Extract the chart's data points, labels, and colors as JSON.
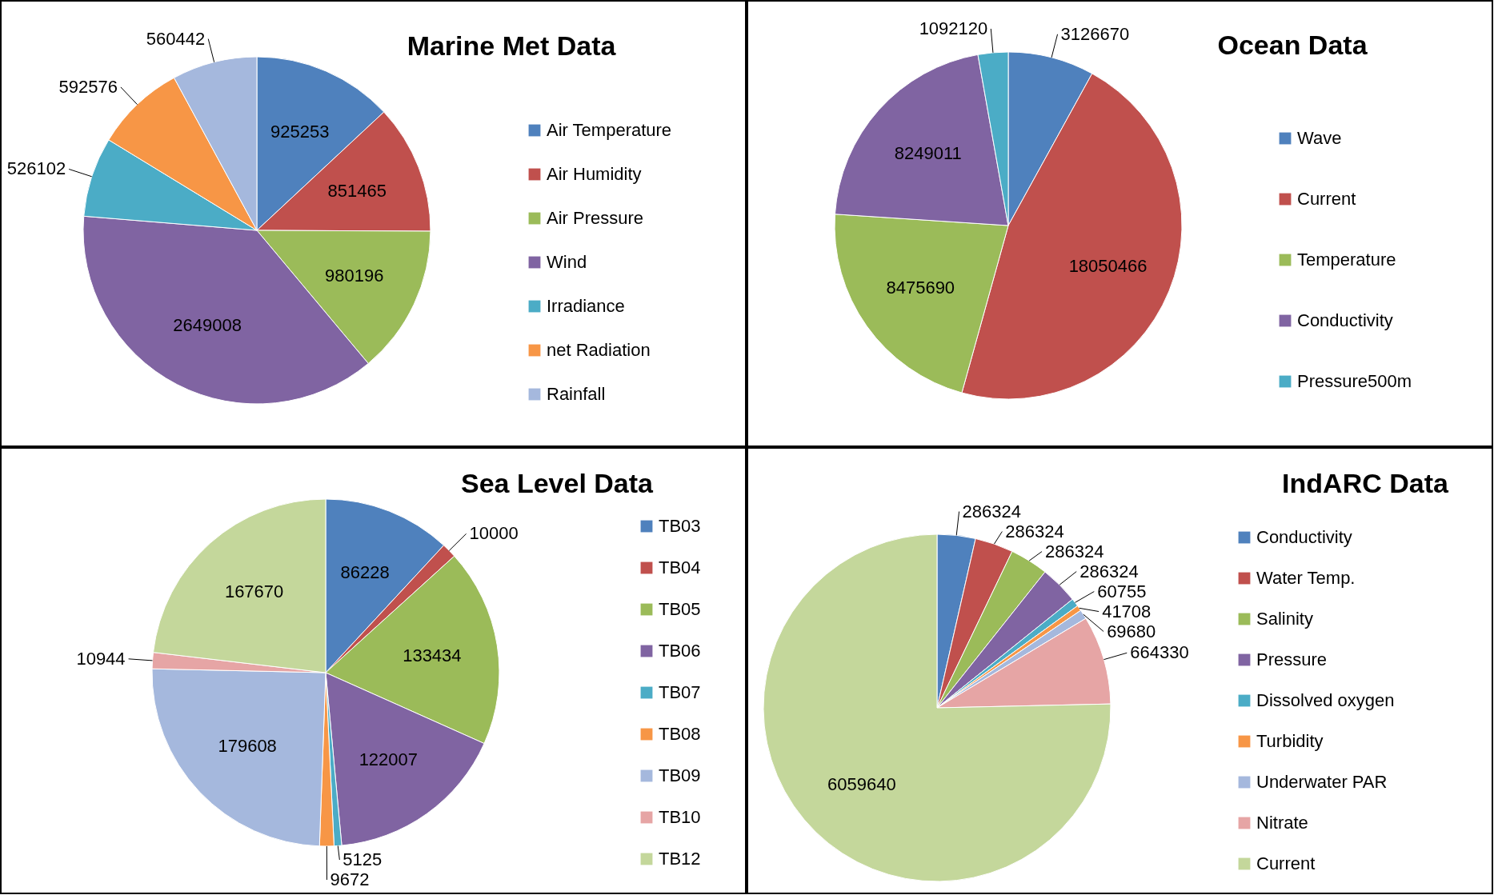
{
  "chart_data": [
    {
      "type": "pie",
      "title": "Marine Met Data",
      "categories": [
        "Air Temperature",
        "Air Humidity",
        "Air Pressure",
        "Wind",
        "Irradiance",
        "net Radiation",
        "Rainfall"
      ],
      "values": [
        925253,
        851465,
        980196,
        2649008,
        526102,
        592576,
        560442
      ],
      "colors": [
        "#4f81bd",
        "#c0504d",
        "#9bbb59",
        "#8064a2",
        "#4bacc6",
        "#f79646",
        "#a5b8dd"
      ],
      "data_labels": true,
      "legend": "right"
    },
    {
      "type": "pie",
      "title": "Ocean Data",
      "categories": [
        "Wave",
        "Current",
        "Temperature",
        "Conductivity",
        "Pressure500m"
      ],
      "values": [
        3126670,
        18050466,
        8475690,
        8249011,
        1092120
      ],
      "colors": [
        "#4f81bd",
        "#c0504d",
        "#9bbb59",
        "#8064a2",
        "#4bacc6"
      ],
      "data_labels": true,
      "legend": "right"
    },
    {
      "type": "pie",
      "title": "Sea Level Data",
      "categories": [
        "TB03",
        "TB04",
        "TB05",
        "TB06",
        "TB07",
        "TB08",
        "TB09",
        "TB10",
        "TB12"
      ],
      "values": [
        86228,
        10000,
        133434,
        122007,
        5125,
        9672,
        179608,
        10944,
        167670
      ],
      "colors": [
        "#4f81bd",
        "#c0504d",
        "#9bbb59",
        "#8064a2",
        "#4bacc6",
        "#f79646",
        "#a5b8dd",
        "#e6a5a5",
        "#c4d79b"
      ],
      "data_labels": true,
      "legend": "right"
    },
    {
      "type": "pie",
      "title": "IndARC Data",
      "categories": [
        "Conductivity",
        "Water Temp.",
        "Salinity",
        "Pressure",
        "Dissolved oxygen",
        "Turbidity",
        "Underwater PAR",
        "Nitrate",
        "Current"
      ],
      "values": [
        286324,
        286324,
        286324,
        286324,
        60755,
        41708,
        69680,
        664330,
        6059640
      ],
      "colors": [
        "#4f81bd",
        "#c0504d",
        "#9bbb59",
        "#8064a2",
        "#4bacc6",
        "#f79646",
        "#a5b8dd",
        "#e6a5a5",
        "#c4d79b"
      ],
      "data_labels": true,
      "legend": "right"
    }
  ]
}
